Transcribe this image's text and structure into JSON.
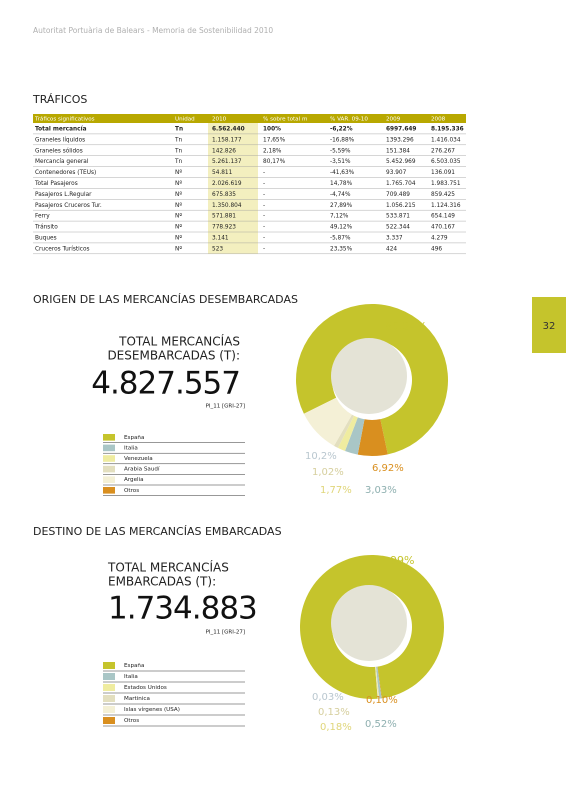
{
  "header": {
    "text": "Autoritat Portuària de Balears - Memoria de Sostenibilidad 2010"
  },
  "page_number": "32",
  "traficos": {
    "title": "TRÁFICOS",
    "table": {
      "columns": [
        "Tráficos significativos",
        "Unidad",
        "2010",
        "% sobre total m",
        "% VAR. 09-10",
        "2009",
        "2008"
      ],
      "rows": [
        [
          "Total mercancía",
          "Tn",
          "6.562.440",
          "100%",
          "-6,22%",
          "6997.649",
          "8.195.336"
        ],
        [
          "Graneles líquidos",
          "Tn",
          "1.158.177",
          "17,65%",
          "-16,88%",
          "1393.296",
          "1.416.034"
        ],
        [
          "Graneles sólidos",
          "Tn",
          "142.826",
          "2,18%",
          "-5,59%",
          "151.384",
          "276.267"
        ],
        [
          "Mercancía general",
          "Tn",
          "5.261.137",
          "80,17%",
          "-3,51%",
          "5.452.969",
          "6.503.035"
        ],
        [
          "Contenedores (TEUs)",
          "Nº",
          "54.811",
          "-",
          "-41,63%",
          "93.907",
          "136.091"
        ],
        [
          "Total Pasajeros",
          "Nº",
          "2.026.619",
          "-",
          "14,78%",
          "1.765.704",
          "1.983.751"
        ],
        [
          "Pasajeros L.Regular",
          "Nº",
          "675.835",
          "-",
          "-4,74%",
          "709.489",
          "859.425"
        ],
        [
          "Pasajeros Cruceros Tur.",
          "Nº",
          "1.350.804",
          "-",
          "27,89%",
          "1.056.215",
          "1.124.316"
        ],
        [
          "Ferry",
          "Nº",
          "571.881",
          "-",
          "7,12%",
          "533.871",
          "654.149"
        ],
        [
          "Tránsito",
          "Nº",
          "778.923",
          "-",
          "49,12%",
          "522.344",
          "470.167"
        ],
        [
          "Buques",
          "Nº",
          "3.141",
          "-",
          "-5,87%",
          "3.337",
          "4.279"
        ],
        [
          "Cruceros Turísticos",
          "Nº",
          "523",
          "-",
          "23,35%",
          "424",
          "496"
        ]
      ]
    }
  },
  "chart_data": [
    {
      "type": "pie",
      "title": "ORIGEN DE LAS MERCANCÍAS DESEMBARCADAS",
      "total_label": [
        "TOTAL MERCANCÍAS",
        "DESEMBARCADAS (T):"
      ],
      "total": "4.827.557",
      "reference": "PI_11 [GRI-27]",
      "categories": [
        "España",
        "Italia",
        "Venezuela",
        "Arabia Saudí",
        "Argelia",
        "Otros"
      ],
      "values": [
        86.24,
        3.03,
        1.77,
        1.02,
        10.2,
        6.92
      ],
      "value_labels": [
        "86,24%",
        "3,03%",
        "1,77%",
        "1,02%",
        "10,2%",
        "6,92%"
      ],
      "colors": [
        "#c5c42c",
        "#a9c6c6",
        "#efeca0",
        "#e3dfbf",
        "#f4f0d6",
        "#d98f1f"
      ]
    },
    {
      "type": "pie",
      "title": "DESTINO DE LAS MERCANCÍAS EMBARCADAS",
      "total_label": [
        "TOTAL MERCANCÍAS",
        "EMBARCADAS (T):"
      ],
      "total": "1.734.883",
      "reference": "PI_11 [GRI-27]",
      "categories": [
        "España",
        "Italia",
        "Estados Unidos",
        "Martinica",
        "Islas vírgenes (USA)",
        "Otros"
      ],
      "values": [
        99,
        0.52,
        0.18,
        0.13,
        0.03,
        0.1
      ],
      "value_labels": [
        "99%",
        "0,52%",
        "0,18%",
        "0,13%",
        "0,03%",
        "0,10%"
      ],
      "colors": [
        "#c5c42c",
        "#a9c6c6",
        "#efeca0",
        "#e3dfbf",
        "#f4f0d6",
        "#d98f1f"
      ]
    }
  ]
}
